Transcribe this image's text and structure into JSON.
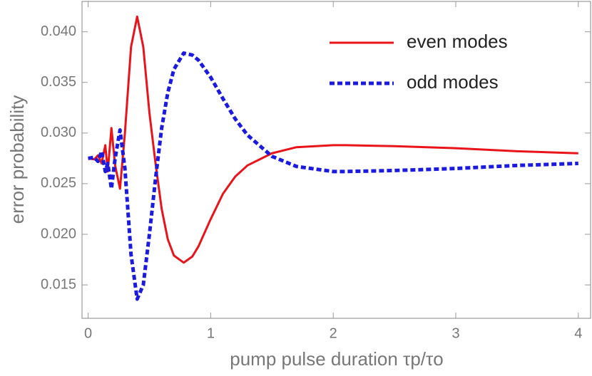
{
  "chart_data": {
    "type": "line",
    "xlabel": "pump pulse duration τp/τo",
    "ylabel": "error probability",
    "x": [
      0,
      0.05,
      0.08,
      0.11,
      0.14,
      0.16,
      0.19,
      0.22,
      0.26,
      0.3,
      0.35,
      0.4,
      0.45,
      0.5,
      0.55,
      0.6,
      0.65,
      0.7,
      0.78,
      0.85,
      0.9,
      1.0,
      1.1,
      1.2,
      1.3,
      1.5,
      1.7,
      2.0,
      2.1,
      2.5,
      3.0,
      3.5,
      4.0
    ],
    "series": [
      {
        "name": "even modes",
        "color": "#e8141a",
        "style": "solid",
        "values": [
          0.0275,
          0.0274,
          0.0278,
          0.027,
          0.0288,
          0.0262,
          0.0305,
          0.0268,
          0.0245,
          0.03,
          0.0385,
          0.0415,
          0.0385,
          0.032,
          0.027,
          0.0225,
          0.0195,
          0.0179,
          0.0172,
          0.0178,
          0.0188,
          0.0215,
          0.024,
          0.0257,
          0.0268,
          0.028,
          0.0286,
          0.0288,
          0.0288,
          0.0287,
          0.0285,
          0.0282,
          0.028
        ]
      },
      {
        "name": "odd modes",
        "color": "#1a1ae0",
        "style": "dashed",
        "values": [
          0.0275,
          0.0276,
          0.0272,
          0.0282,
          0.0262,
          0.027,
          0.0245,
          0.0275,
          0.0303,
          0.0265,
          0.018,
          0.0136,
          0.015,
          0.02,
          0.0255,
          0.0305,
          0.034,
          0.0363,
          0.0379,
          0.0377,
          0.0372,
          0.0355,
          0.0334,
          0.0314,
          0.0298,
          0.0277,
          0.0267,
          0.0262,
          0.0262,
          0.0263,
          0.0265,
          0.0268,
          0.027
        ]
      }
    ],
    "xlim": [
      -0.05,
      4.1
    ],
    "ylim": [
      0.0117,
      0.043
    ],
    "xticks": [
      0,
      1,
      2,
      3,
      4
    ],
    "yticks": [
      {
        "value": 0.015,
        "label": "0.015"
      },
      {
        "value": 0.02,
        "label": "0.020"
      },
      {
        "value": 0.025,
        "label": "0.025"
      },
      {
        "value": 0.03,
        "label": "0.030"
      },
      {
        "value": 0.035,
        "label": "0.035"
      },
      {
        "value": 0.04,
        "label": "0.040"
      }
    ],
    "legend": "upper-right"
  }
}
